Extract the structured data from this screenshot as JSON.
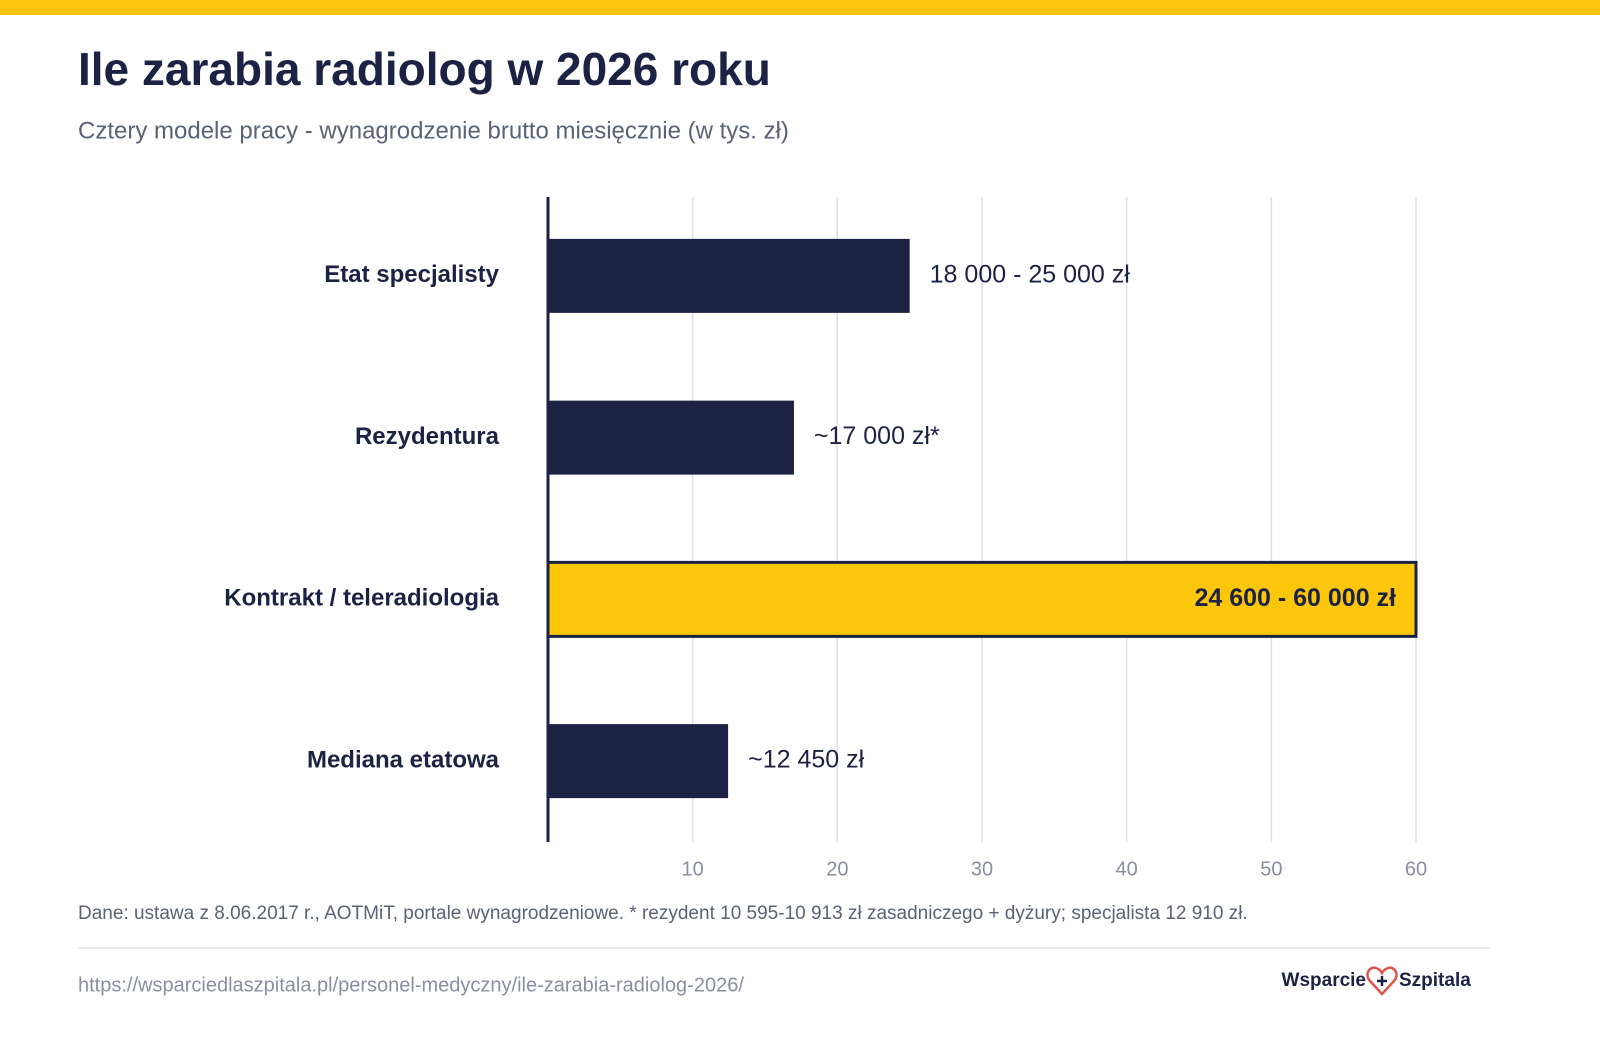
{
  "chart_data": {
    "type": "hbar",
    "title": "Ile zarabia radiolog w 2026 roku",
    "subtitle": "Cztery modele pracy - wynagrodzenie brutto miesięcznie (w tys. zł)",
    "categories": [
      "Etat specjalisty",
      "Rezydentura",
      "Kontrakt / teleradiologia",
      "Mediana etatowa"
    ],
    "values": [
      25,
      17,
      60,
      12.45
    ],
    "value_labels": [
      "18 000 - 25 000 zł",
      "~17 000 zł*",
      "24 600 - 60 000 zł",
      "~12 450 zł"
    ],
    "colors": [
      "#1c2244",
      "#1c2244",
      "#fcc60a",
      "#1c2244"
    ],
    "xlim": [
      0,
      60
    ],
    "xticks": [
      10,
      20,
      30,
      40,
      50,
      60
    ],
    "grid": true,
    "note": "Dane: ustawa z 8.06.2017 r., AOTMiT, portale wynagrodzeniowe. * rezydent 10 595-10 913 zł zasadniczego + dyżury; specjalista 12 910 zł."
  },
  "footer": {
    "url": "https://wsparciedlaszpitala.pl/personel-medyczny/ile-zarabia-radiolog-2026/",
    "logo": [
      "Wsparcie",
      "Szpitala"
    ]
  }
}
